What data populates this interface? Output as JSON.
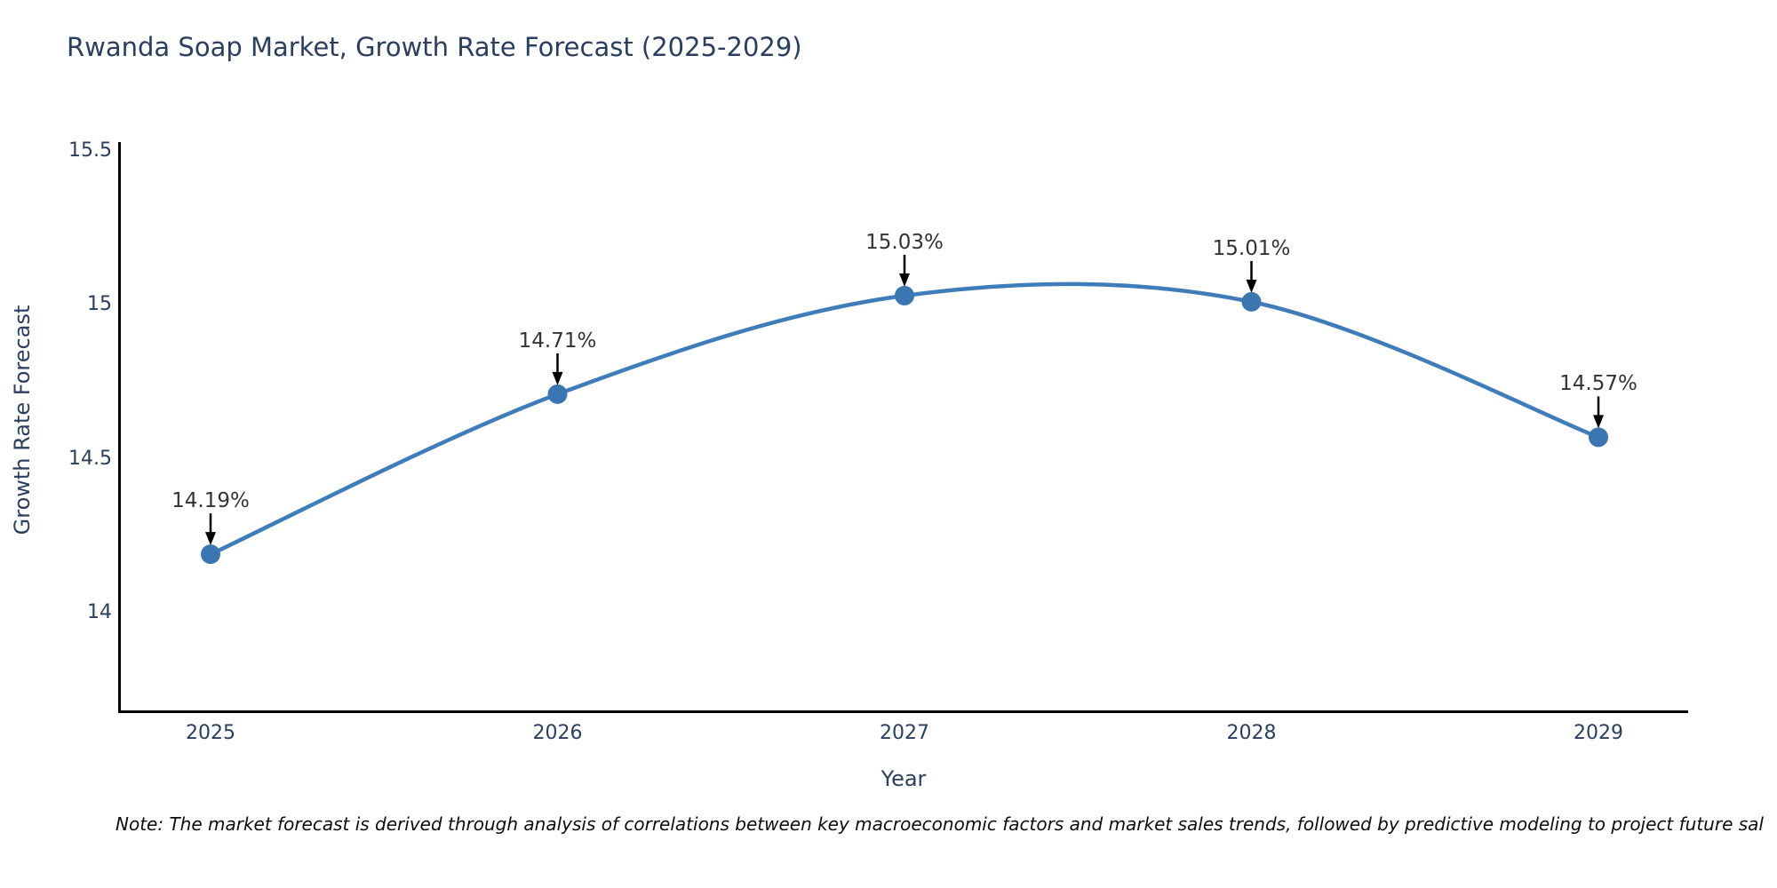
{
  "title": "Rwanda Soap Market, Growth Rate Forecast (2025-2029)",
  "note": "Note: The market forecast is derived through analysis of correlations between key macroeconomic factors and market sales trends, followed by predictive modeling to project future sal",
  "chart_data": {
    "type": "line",
    "title": "Rwanda Soap Market, Growth Rate Forecast (2025-2029)",
    "xlabel": "Year",
    "ylabel": "Growth Rate Forecast",
    "x": [
      "2025",
      "2026",
      "2027",
      "2028",
      "2029"
    ],
    "series": [
      {
        "name": "Growth Rate Forecast",
        "values": [
          14.19,
          14.71,
          15.03,
          15.01,
          14.57
        ]
      }
    ],
    "point_labels": [
      "14.19%",
      "14.71%",
      "15.03%",
      "15.01%",
      "14.57%"
    ],
    "y_tick_labels": [
      "14",
      "14.5",
      "15",
      "15.5"
    ],
    "y_tick_values": [
      14,
      14.5,
      15,
      15.5
    ],
    "ylim": [
      13.68,
      15.53
    ],
    "grid": false,
    "legend_position": "none",
    "line_shape": "spline",
    "colors": {
      "line": "#3e7dba",
      "marker": "#3a77b2",
      "axis": "#000000",
      "tick_text": "#2a3f5f",
      "annotation_text": "#333333",
      "annotation_arrow": "#000000"
    }
  }
}
